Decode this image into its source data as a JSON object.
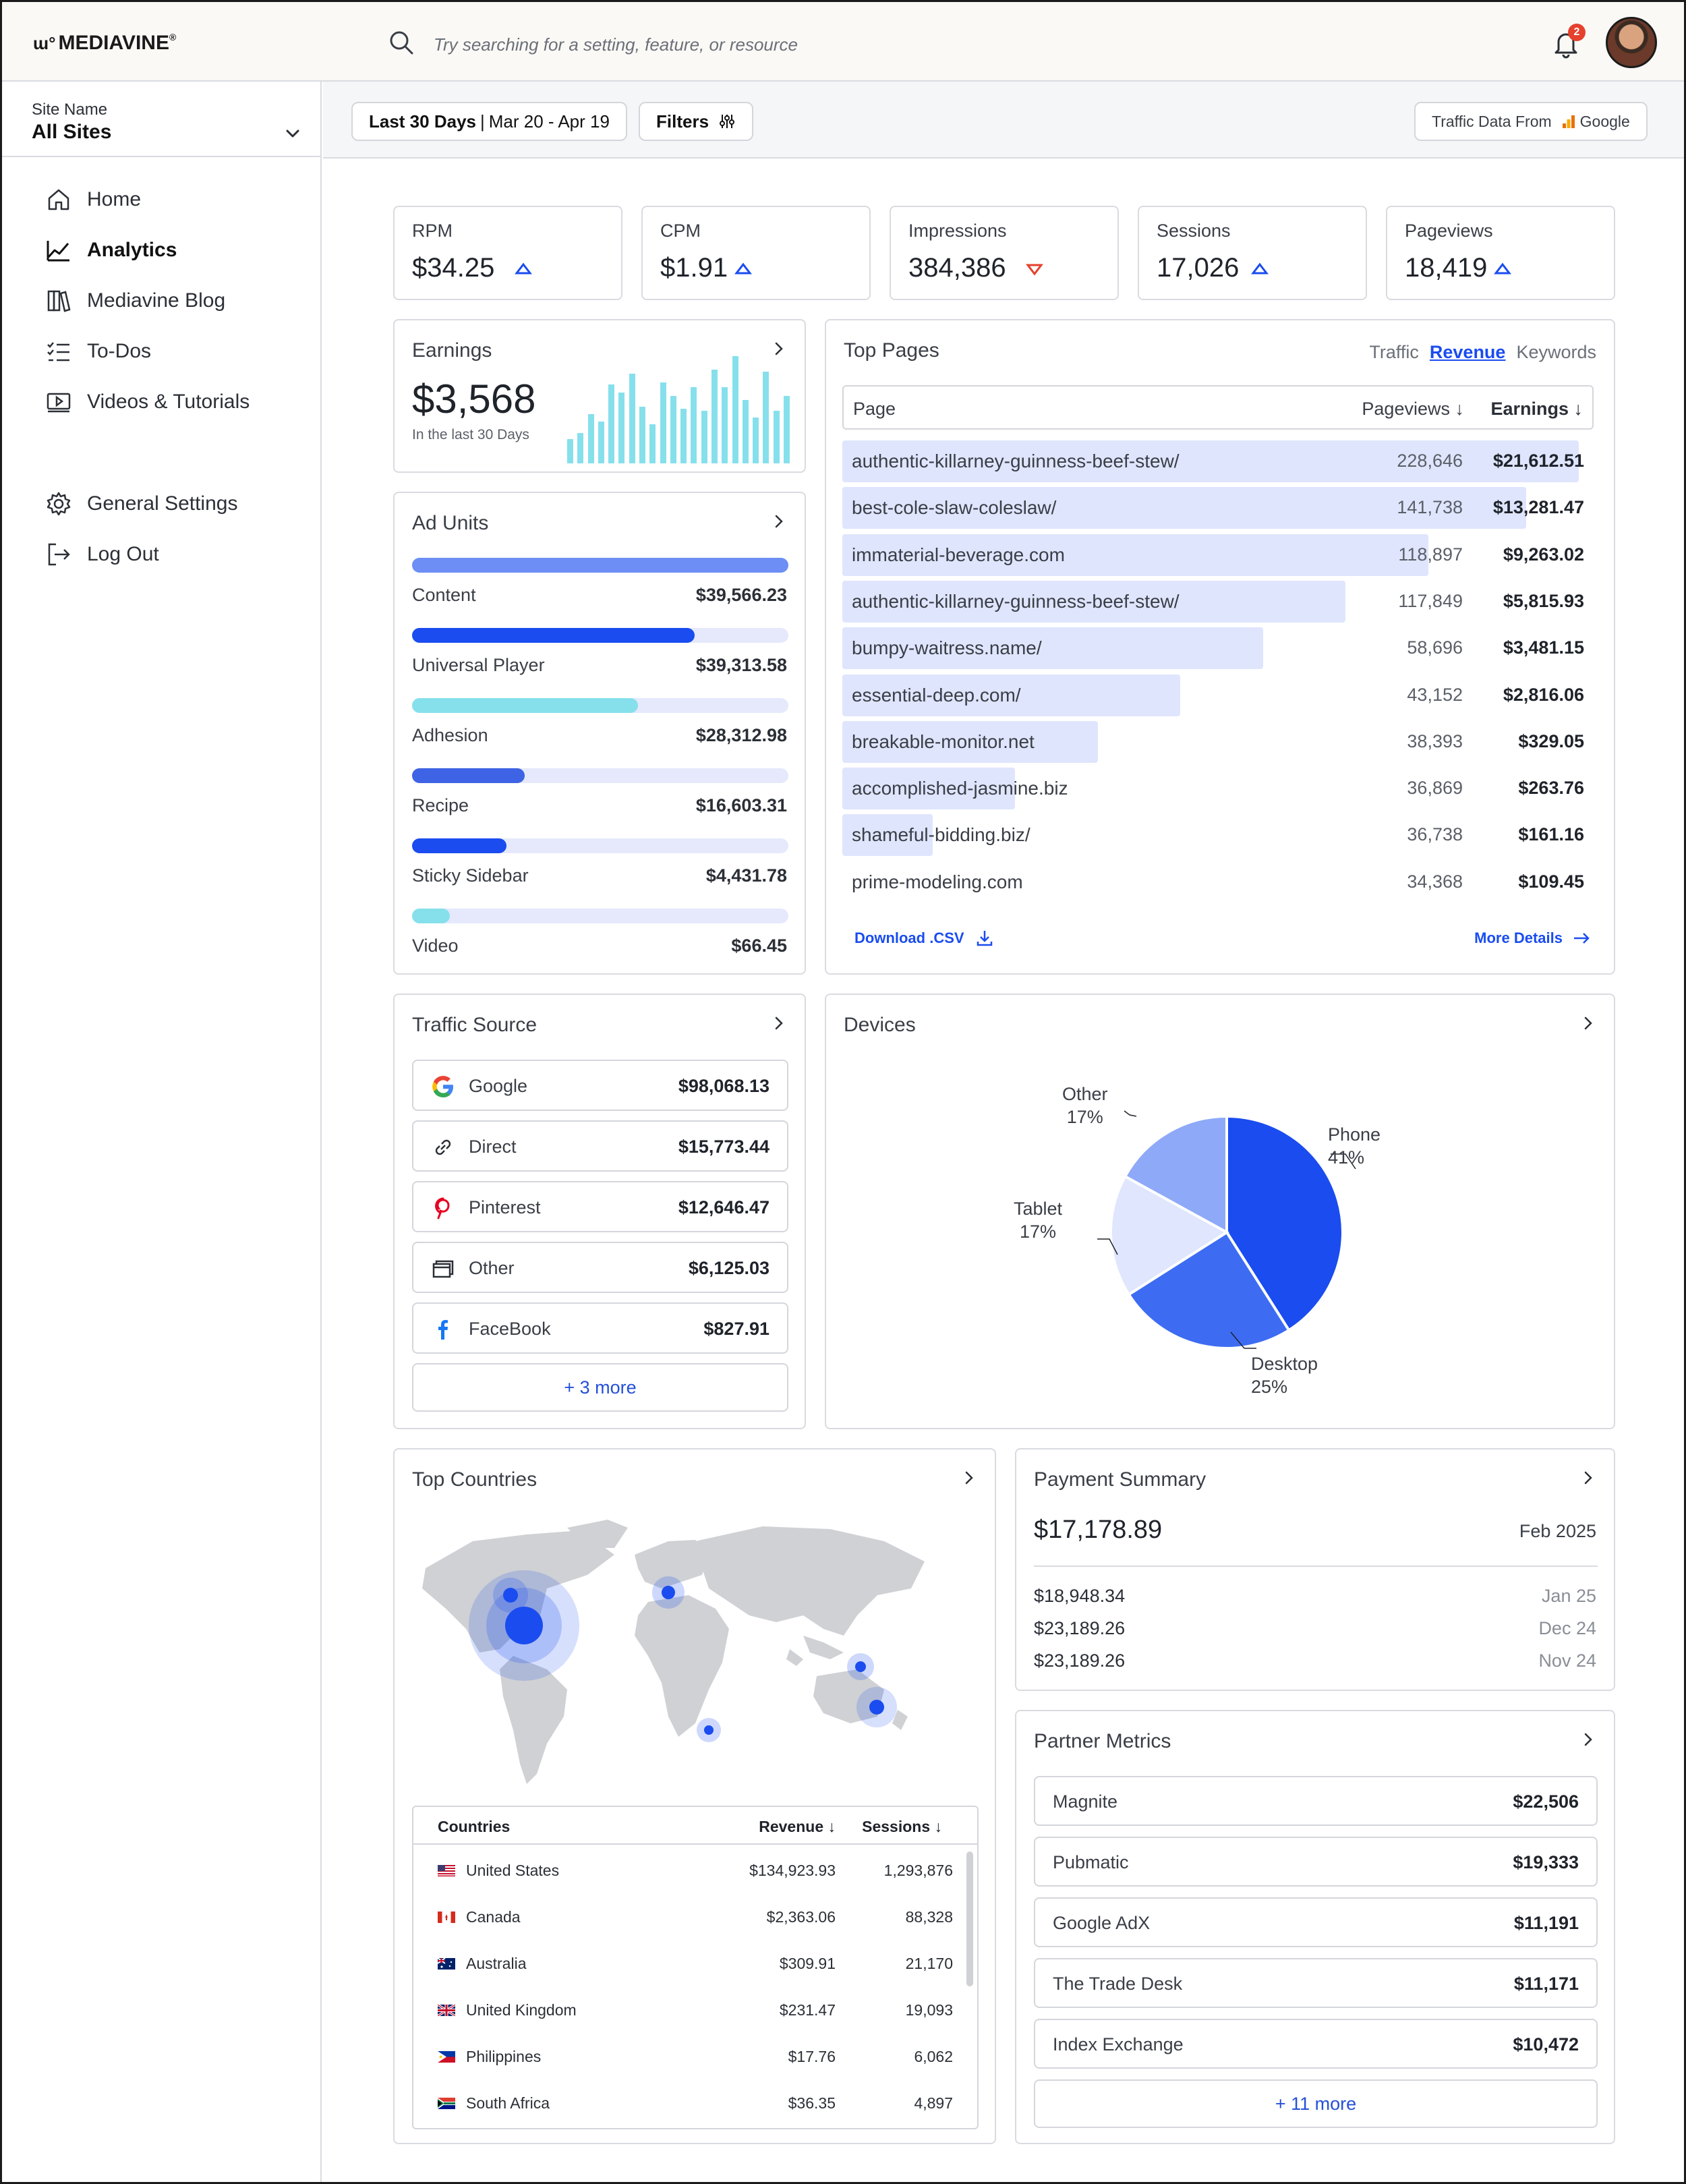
{
  "app": {
    "logo_text": "MEDIAVINE",
    "search_placeholder": "Try searching for a setting, feature, or resource",
    "notification_count": "2"
  },
  "sidebar": {
    "site_label": "Site Name",
    "site_value": "All Sites",
    "nav": [
      {
        "label": "Home",
        "icon": "home-icon"
      },
      {
        "label": "Analytics",
        "icon": "analytics-icon"
      },
      {
        "label": "Mediavine Blog",
        "icon": "books-icon"
      },
      {
        "label": "To-Dos",
        "icon": "checklist-icon"
      },
      {
        "label": "Videos & Tutorials",
        "icon": "video-icon"
      }
    ],
    "settings": [
      {
        "label": "General Settings",
        "icon": "gear-icon"
      },
      {
        "label": "Log Out",
        "icon": "logout-icon"
      }
    ]
  },
  "filters": {
    "range_label": "Last 30 Days",
    "range_dates": "Mar 20 - Apr 19",
    "filters_label": "Filters",
    "traffic_source_label": "Traffic Data From",
    "traffic_source_value": "Google"
  },
  "kpis": [
    {
      "label": "RPM",
      "value": "$34.25",
      "trend": "up"
    },
    {
      "label": "CPM",
      "value": "$1.91",
      "trend": "up"
    },
    {
      "label": "Impressions",
      "value": "384,386",
      "trend": "down"
    },
    {
      "label": "Sessions",
      "value": "17,026",
      "trend": "up"
    },
    {
      "label": "Pageviews",
      "value": "18,419",
      "trend": "up"
    }
  ],
  "earnings": {
    "title": "Earnings",
    "value": "$3,568",
    "caption": "In the last 30 Days",
    "bars": [
      22,
      28,
      45,
      38,
      72,
      65,
      82,
      52,
      36,
      74,
      62,
      50,
      70,
      48,
      86,
      70,
      98,
      58,
      42,
      84,
      48,
      62
    ]
  },
  "ad_units": {
    "title": "Ad Units",
    "items": [
      {
        "name": "Content",
        "value": "$39,566.23",
        "fill": 1.0,
        "color": "#6c8ef5"
      },
      {
        "name": "Universal Player",
        "value": "$39,313.58",
        "fill": 0.75,
        "color": "#1a4cf0"
      },
      {
        "name": "Adhesion",
        "value": "$28,312.98",
        "fill": 0.6,
        "color": "#86e0ec"
      },
      {
        "name": "Recipe",
        "value": "$16,603.31",
        "fill": 0.3,
        "color": "#3e63e4"
      },
      {
        "name": "Sticky Sidebar",
        "value": "$4,431.78",
        "fill": 0.25,
        "color": "#1a4cf0"
      },
      {
        "name": "Video",
        "value": "$66.45",
        "fill": 0.1,
        "color": "#86e0ec"
      }
    ]
  },
  "top_pages": {
    "title": "Top Pages",
    "tabs": [
      "Traffic",
      "Revenue",
      "Keywords"
    ],
    "active_tab": "Revenue",
    "col_page": "Page",
    "col_pageviews": "Pageviews",
    "col_earnings": "Earnings",
    "rows": [
      {
        "page": "authentic-killarney-guinness-beef-stew/",
        "pageviews": "228,646",
        "earnings": "$21,612.51",
        "fill": 0.98
      },
      {
        "page": "best-cole-slaw-coleslaw/",
        "pageviews": "141,738",
        "earnings": "$13,281.47",
        "fill": 0.91
      },
      {
        "page": "immaterial-beverage.com",
        "pageviews": "118,897",
        "earnings": "$9,263.02",
        "fill": 0.78
      },
      {
        "page": "authentic-killarney-guinness-beef-stew/",
        "pageviews": "117,849",
        "earnings": "$5,815.93",
        "fill": 0.67
      },
      {
        "page": "bumpy-waitress.name/",
        "pageviews": "58,696",
        "earnings": "$3,481.15",
        "fill": 0.56
      },
      {
        "page": "essential-deep.com/",
        "pageviews": "43,152",
        "earnings": "$2,816.06",
        "fill": 0.45
      },
      {
        "page": "breakable-monitor.net",
        "pageviews": "38,393",
        "earnings": "$329.05",
        "fill": 0.34
      },
      {
        "page": "accomplished-jasmine.biz",
        "pageviews": "36,869",
        "earnings": "$263.76",
        "fill": 0.23
      },
      {
        "page": "shameful-bidding.biz/",
        "pageviews": "36,738",
        "earnings": "$161.16",
        "fill": 0.12
      },
      {
        "page": "prime-modeling.com",
        "pageviews": "34,368",
        "earnings": "$109.45",
        "fill": 0.0
      }
    ],
    "download_label": "Download .CSV",
    "more_label": "More Details"
  },
  "traffic_source": {
    "title": "Traffic Source",
    "items": [
      {
        "name": "Google",
        "value": "$98,068.13",
        "icon": "google-icon"
      },
      {
        "name": "Direct",
        "value": "$15,773.44",
        "icon": "link-icon"
      },
      {
        "name": "Pinterest",
        "value": "$12,646.47",
        "icon": "pinterest-icon"
      },
      {
        "name": "Other",
        "value": "$6,125.03",
        "icon": "window-icon"
      },
      {
        "name": "FaceBook",
        "value": "$827.91",
        "icon": "facebook-icon"
      }
    ],
    "more_label": "+ 3 more"
  },
  "devices": {
    "title": "Devices",
    "labels": {
      "phone": "Phone",
      "phone_pct": "41%",
      "desktop": "Desktop",
      "desktop_pct": "25%",
      "tablet": "Tablet",
      "tablet_pct": "17%",
      "other": "Other",
      "other_pct": "17%"
    }
  },
  "chart_data": {
    "type": "pie",
    "labels": [
      "Phone",
      "Desktop",
      "Tablet",
      "Other"
    ],
    "values": [
      41,
      25,
      17,
      17
    ],
    "colors": [
      "#1a4cf0",
      "#3d6cf3",
      "#dfe6fd",
      "#8ea9f8"
    ]
  },
  "top_countries": {
    "title": "Top Countries",
    "col_country": "Countries",
    "col_revenue": "Revenue",
    "col_sessions": "Sessions",
    "rows": [
      {
        "flag": "us",
        "name": "United States",
        "revenue": "$134,923.93",
        "sessions": "1,293,876"
      },
      {
        "flag": "ca",
        "name": "Canada",
        "revenue": "$2,363.06",
        "sessions": "88,328"
      },
      {
        "flag": "au",
        "name": "Australia",
        "revenue": "$309.91",
        "sessions": "21,170"
      },
      {
        "flag": "gb",
        "name": "United Kingdom",
        "revenue": "$231.47",
        "sessions": "19,093"
      },
      {
        "flag": "ph",
        "name": "Philippines",
        "revenue": "$17.76",
        "sessions": "6,062"
      },
      {
        "flag": "za",
        "name": "South Africa",
        "revenue": "$36.35",
        "sessions": "4,897"
      }
    ]
  },
  "payment_summary": {
    "title": "Payment Summary",
    "current_amount": "$17,178.89",
    "current_date": "Feb 2025",
    "history": [
      {
        "amount": "$18,948.34",
        "date": "Jan 25"
      },
      {
        "amount": "$23,189.26",
        "date": "Dec 24"
      },
      {
        "amount": "$23,189.26",
        "date": "Nov 24"
      }
    ]
  },
  "partner_metrics": {
    "title": "Partner Metrics",
    "items": [
      {
        "name": "Magnite",
        "value": "$22,506"
      },
      {
        "name": "Pubmatic",
        "value": "$19,333"
      },
      {
        "name": "Google AdX",
        "value": "$11,191"
      },
      {
        "name": "The Trade Desk",
        "value": "$11,171"
      },
      {
        "name": "Index Exchange",
        "value": "$10,472"
      }
    ],
    "more_label": "+ 11 more"
  },
  "colors": {
    "accent": "#1a4cf0",
    "accent_light": "#dfe5fd",
    "cyan": "#86e0ec",
    "down": "#e5412d"
  }
}
